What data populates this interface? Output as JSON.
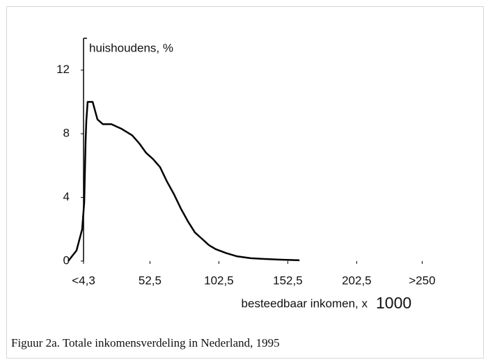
{
  "chart_data": {
    "type": "line",
    "ylabel": "huishoudens, %",
    "xlabel": "besteedbaar inkomen, x",
    "xlabel_unit": "1000",
    "caption": "Figuur 2a. Totale inkomensverdeling in Nederland, 1995",
    "x": [
      -6.8,
      -0.8,
      3.3,
      4.8,
      5.8,
      6.3,
      7.3,
      10.9,
      14.4,
      18.4,
      24.5,
      32.1,
      39.6,
      44.7,
      49.7,
      54.8,
      59.8,
      64.8,
      69.9,
      74.9,
      80,
      85.1,
      90.2,
      95.2,
      100.2,
      107.8,
      115.4,
      125.5,
      135.6,
      145.7,
      161
    ],
    "values": [
      0,
      0.66,
      2,
      3.7,
      7.6,
      8.8,
      10,
      10,
      8.9,
      8.6,
      8.6,
      8.3,
      7.9,
      7.4,
      6.8,
      6.4,
      5.9,
      5,
      4.2,
      3.3,
      2.5,
      1.8,
      1.4,
      1.0,
      0.75,
      0.5,
      0.3,
      0.18,
      0.13,
      0.09,
      0.05
    ],
    "color": "#000000",
    "xlim": [
      -10,
      270
    ],
    "ylim": [
      0,
      14
    ],
    "xticks": [
      {
        "value": 4.3,
        "label": "<4,3"
      },
      {
        "value": 52.5,
        "label": "52,5"
      },
      {
        "value": 102.5,
        "label": "102,5"
      },
      {
        "value": 152.5,
        "label": "152,5"
      },
      {
        "value": 202.5,
        "label": "202,5"
      },
      {
        "value": 250,
        "label": ">250"
      }
    ],
    "yticks": [
      0,
      4,
      8,
      12
    ]
  }
}
